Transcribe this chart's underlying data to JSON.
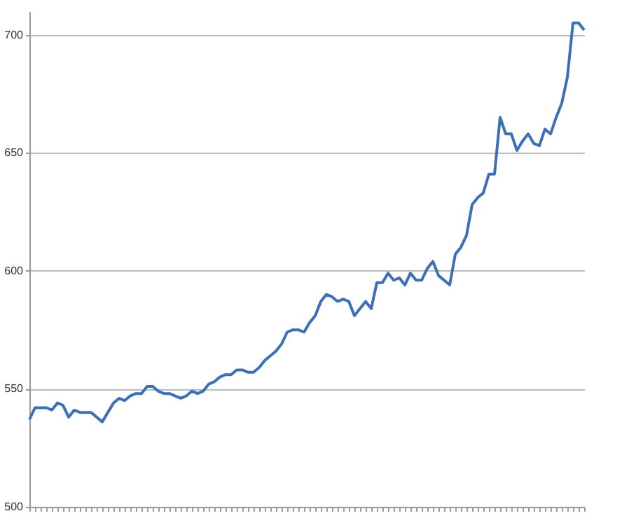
{
  "chart_data": {
    "type": "line",
    "categories": [
      null,
      null,
      null,
      null,
      null,
      null,
      null,
      null,
      null,
      null,
      null,
      null,
      null,
      null,
      null,
      null,
      null,
      null,
      null,
      null,
      null,
      null,
      null,
      null,
      null,
      null,
      null,
      null,
      null,
      null,
      null,
      null,
      null,
      null,
      null,
      null,
      null,
      null,
      null,
      null,
      null,
      null,
      null,
      null,
      null,
      null,
      null,
      null,
      null,
      null,
      null,
      null,
      null,
      null,
      null,
      null,
      null,
      null,
      null,
      null,
      null,
      null,
      null,
      null,
      null,
      null,
      null,
      null,
      null,
      null,
      null,
      null,
      null,
      null,
      null,
      null,
      null,
      null,
      null,
      null,
      null,
      null,
      null,
      null,
      null,
      null,
      null,
      null,
      null,
      null,
      null,
      null,
      null,
      null,
      null,
      null,
      null,
      null,
      null,
      null
    ],
    "series": [
      {
        "color": "#3b70b8",
        "values": [
          537,
          542,
          542,
          542,
          541,
          544,
          543,
          538,
          541,
          540,
          540,
          540,
          538,
          536,
          540,
          544,
          546,
          545,
          547,
          548,
          548,
          551,
          551,
          549,
          548,
          548,
          547,
          546,
          547,
          549,
          548,
          549,
          552,
          553,
          555,
          556,
          556,
          558,
          558,
          557,
          557,
          559,
          562,
          564,
          566,
          569,
          574,
          575,
          575,
          574,
          578,
          581,
          587,
          590,
          589,
          587,
          588,
          587,
          581,
          584,
          587,
          584,
          595,
          595,
          599,
          596,
          597,
          594,
          599,
          596,
          596,
          601,
          604,
          598,
          596,
          594,
          607,
          610,
          615,
          628,
          631,
          633,
          641,
          641,
          665,
          658,
          658,
          651,
          655,
          658,
          654,
          653,
          660,
          658,
          665,
          671,
          682,
          705,
          705,
          702
        ]
      }
    ],
    "ylim": [
      500,
      710
    ],
    "yticks": [
      500,
      550,
      600,
      650,
      700
    ],
    "grid": "y",
    "tick_labels": "y",
    "marker": "none",
    "line_style": "solid"
  }
}
